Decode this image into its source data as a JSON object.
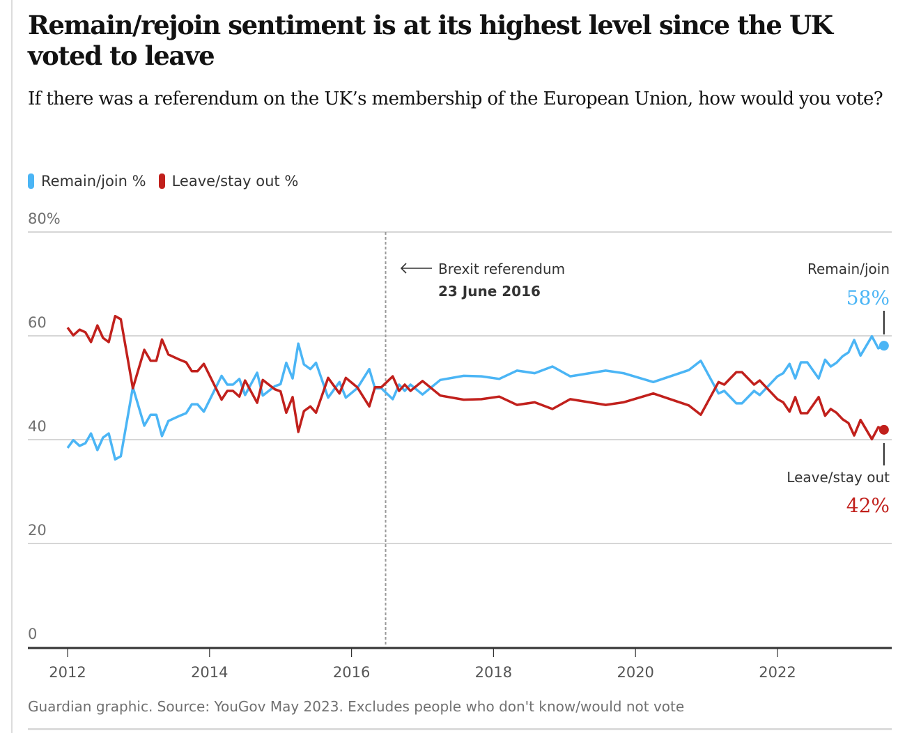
{
  "header": {
    "title": "Remain/rejoin sentiment is at its highest level since the UK voted to leave",
    "subtitle": "If there was a referendum on the UK’s membership of the European Union, how would you vote?"
  },
  "legend": [
    {
      "label": "Remain/join %",
      "color": "#4bb5f5"
    },
    {
      "label": "Leave/stay out %",
      "color": "#c1201c"
    }
  ],
  "annotations": {
    "referendum_label": "Brexit referendum",
    "referendum_date": "23 June 2016",
    "remain_label": "Remain/join",
    "remain_value": "58%",
    "leave_label": "Leave/stay out",
    "leave_value": "42%"
  },
  "footer": {
    "source": "Guardian graphic. Source: YouGov May 2023. Excludes people who don't know/would not vote"
  },
  "chart_data": {
    "type": "line",
    "title": "Remain/rejoin sentiment is at its highest level since the UK voted to leave",
    "subtitle": "If there was a referendum on the UK’s membership of the European Union, how would you vote?",
    "xlabel": "",
    "ylabel": "",
    "xlim": [
      2011.95,
      2023.55
    ],
    "ylim": [
      0,
      80
    ],
    "x_ticks": [
      2012,
      2014,
      2016,
      2018,
      2020,
      2022
    ],
    "x_tick_labels": [
      "2012",
      "2014",
      "2016",
      "2018",
      "2020",
      "2022"
    ],
    "y_ticks": [
      0,
      20,
      40,
      60,
      80
    ],
    "y_tick_labels": [
      "0",
      "20",
      "40",
      "60",
      "80%"
    ],
    "grid": true,
    "legend_position": "top-left",
    "reference_line": {
      "x": 2016.48,
      "label": "Brexit referendum",
      "sublabel": "23 June 2016"
    },
    "x": [
      2012.0,
      2012.08,
      2012.17,
      2012.25,
      2012.33,
      2012.42,
      2012.5,
      2012.58,
      2012.67,
      2012.75,
      2012.92,
      2013.08,
      2013.17,
      2013.25,
      2013.33,
      2013.42,
      2013.58,
      2013.67,
      2013.75,
      2013.83,
      2013.92,
      2014.17,
      2014.25,
      2014.33,
      2014.42,
      2014.5,
      2014.67,
      2014.75,
      2014.92,
      2015.0,
      2015.08,
      2015.17,
      2015.25,
      2015.33,
      2015.42,
      2015.5,
      2015.67,
      2015.83,
      2015.92,
      2016.08,
      2016.25,
      2016.33,
      2016.42,
      2016.58,
      2016.67,
      2016.75,
      2016.83,
      2017.0,
      2017.25,
      2017.58,
      2017.83,
      2018.08,
      2018.33,
      2018.58,
      2018.83,
      2019.08,
      2019.58,
      2019.83,
      2020.25,
      2020.75,
      2020.92,
      2021.17,
      2021.25,
      2021.42,
      2021.5,
      2021.67,
      2021.75,
      2022.0,
      2022.08,
      2022.17,
      2022.25,
      2022.33,
      2022.42,
      2022.58,
      2022.67,
      2022.75,
      2022.83,
      2022.92,
      2023.0,
      2023.08,
      2023.17,
      2023.33,
      2023.42,
      2023.5
    ],
    "series": [
      {
        "name": "Remain/join %",
        "color": "#4bb5f5",
        "values": [
          38.4,
          39.9,
          38.8,
          39.3,
          41.2,
          38.0,
          40.4,
          41.2,
          36.2,
          36.8,
          50.1,
          42.7,
          44.8,
          44.8,
          40.7,
          43.6,
          44.6,
          45.1,
          46.8,
          46.8,
          45.4,
          52.3,
          50.6,
          50.6,
          51.7,
          48.6,
          52.9,
          48.5,
          50.3,
          50.7,
          54.8,
          51.8,
          58.5,
          54.5,
          53.6,
          54.8,
          48.1,
          51.1,
          48.1,
          49.9,
          53.6,
          49.9,
          49.9,
          47.8,
          50.6,
          49.4,
          50.6,
          48.7,
          51.5,
          52.3,
          52.2,
          51.7,
          53.3,
          52.8,
          54.1,
          52.2,
          53.3,
          52.8,
          51.1,
          53.4,
          55.2,
          48.9,
          49.4,
          47.0,
          47.0,
          49.4,
          48.6,
          52.2,
          52.8,
          54.6,
          51.8,
          54.9,
          54.9,
          51.8,
          55.4,
          54.1,
          54.8,
          56.1,
          56.8,
          59.2,
          56.2,
          59.9,
          57.6,
          58.1
        ]
      },
      {
        "name": "Leave/stay out %",
        "color": "#c1201c",
        "values": [
          61.6,
          60.1,
          61.2,
          60.7,
          58.8,
          62.0,
          59.6,
          58.8,
          63.8,
          63.2,
          49.9,
          57.3,
          55.2,
          55.2,
          59.3,
          56.4,
          55.4,
          54.9,
          53.2,
          53.2,
          54.6,
          47.7,
          49.4,
          49.4,
          48.3,
          51.4,
          47.1,
          51.5,
          49.7,
          49.3,
          45.2,
          48.2,
          41.5,
          45.5,
          46.4,
          45.2,
          51.9,
          48.9,
          51.9,
          50.1,
          46.4,
          50.1,
          50.1,
          52.2,
          49.4,
          50.6,
          49.4,
          51.3,
          48.5,
          47.7,
          47.8,
          48.3,
          46.7,
          47.2,
          45.9,
          47.8,
          46.7,
          47.2,
          48.9,
          46.6,
          44.8,
          51.1,
          50.6,
          53.0,
          53.0,
          50.6,
          51.4,
          47.8,
          47.2,
          45.4,
          48.2,
          45.1,
          45.1,
          48.2,
          44.6,
          45.9,
          45.2,
          43.9,
          43.2,
          40.8,
          43.8,
          40.1,
          42.4,
          41.9
        ]
      }
    ],
    "end_labels": [
      {
        "series": "Remain/join %",
        "label": "Remain/join",
        "value": "58%"
      },
      {
        "series": "Leave/stay out %",
        "label": "Leave/stay out",
        "value": "42%"
      }
    ]
  }
}
